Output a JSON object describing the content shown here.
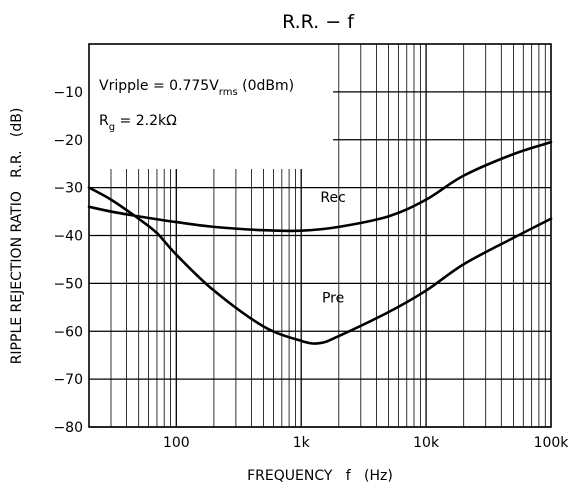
{
  "chart_data": {
    "type": "line",
    "title": "R.R. − f",
    "xlabel": "FREQUENCY   f   (Hz)",
    "ylabel": "RIPPLE REJECTION RATIO   R.R.   (dB)",
    "x_scale": "log",
    "xlim": [
      20,
      100000
    ],
    "ylim": [
      -80,
      0
    ],
    "grid": true,
    "x_ticks": [
      {
        "value": 100,
        "label": "100"
      },
      {
        "value": 1000,
        "label": "1k"
      },
      {
        "value": 10000,
        "label": "10k"
      },
      {
        "value": 100000,
        "label": "100k"
      }
    ],
    "y_ticks": [
      {
        "value": -10,
        "label": "−10"
      },
      {
        "value": -20,
        "label": "−20"
      },
      {
        "value": -30,
        "label": "−30"
      },
      {
        "value": -40,
        "label": "−40"
      },
      {
        "value": -50,
        "label": "−50"
      },
      {
        "value": -60,
        "label": "−60"
      },
      {
        "value": -70,
        "label": "−70"
      },
      {
        "value": -80,
        "label": "−80"
      }
    ],
    "conditions": {
      "line1": {
        "prefix": "Vripple = 0.775V",
        "sub": "rms",
        "suffix": " (0dBm)"
      },
      "line2": {
        "prefix": "R",
        "sub": "g",
        "suffix": " = 2.2kΩ"
      }
    },
    "series": [
      {
        "name": "Rec",
        "x": [
          20,
          30,
          50,
          100,
          200,
          500,
          1000,
          2000,
          5000,
          10000,
          20000,
          50000,
          100000
        ],
        "y": [
          -34,
          -35,
          -36,
          -37.2,
          -38.2,
          -38.9,
          -39,
          -38.2,
          -36,
          -32.5,
          -27.5,
          -23,
          -20.5
        ]
      },
      {
        "name": "Pre",
        "x": [
          20,
          30,
          50,
          70,
          100,
          200,
          500,
          1000,
          1400,
          2000,
          5000,
          10000,
          20000,
          50000,
          100000
        ],
        "y": [
          -30,
          -32.5,
          -36.5,
          -39.5,
          -44,
          -51.5,
          -59,
          -62,
          -62.5,
          -61,
          -56,
          -51.5,
          -46,
          -40.5,
          -36.5
        ]
      }
    ]
  }
}
